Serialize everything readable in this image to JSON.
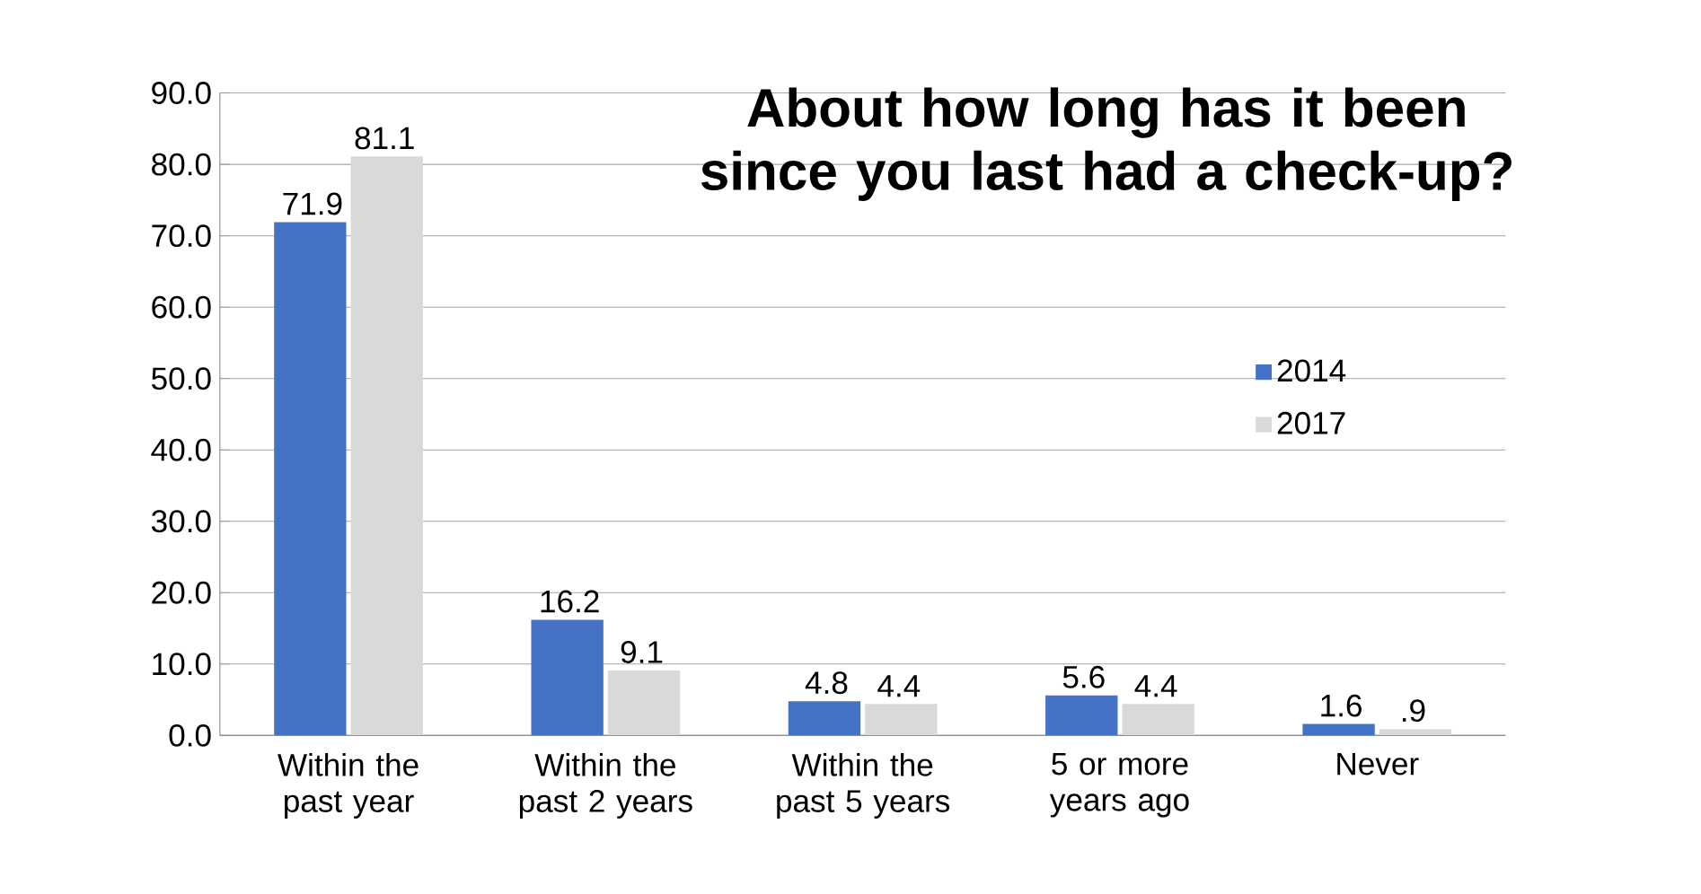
{
  "chart_data": {
    "type": "bar",
    "title": "About how long has it been since you last had a check-up?",
    "categories": [
      "Within the past year",
      "Within the past 2 years",
      "Within the past 5 years",
      "5 or more years ago",
      "Never"
    ],
    "series": [
      {
        "name": "2014",
        "color": "#4472c4",
        "values": [
          71.9,
          16.2,
          4.8,
          5.6,
          1.6
        ],
        "value_labels": [
          "71.9",
          "16.2",
          "4.8",
          "5.6",
          "1.6"
        ]
      },
      {
        "name": "2017",
        "color": "#d9d9d9",
        "values": [
          81.1,
          9.1,
          4.4,
          4.4,
          0.9
        ],
        "value_labels": [
          "81.1",
          "9.1",
          "4.4",
          "4.4",
          ".9"
        ]
      }
    ],
    "ylim": [
      0,
      90
    ],
    "yticks": [
      {
        "value": 0,
        "label": "0.0"
      },
      {
        "value": 10,
        "label": "10.0"
      },
      {
        "value": 20,
        "label": "20.0"
      },
      {
        "value": 30,
        "label": "30.0"
      },
      {
        "value": 40,
        "label": "40.0"
      },
      {
        "value": 50,
        "label": "50.0"
      },
      {
        "value": 60,
        "label": "60.0"
      },
      {
        "value": 70,
        "label": "70.0"
      },
      {
        "value": 80,
        "label": "80.0"
      },
      {
        "value": 90,
        "label": "90.0"
      }
    ],
    "grid": "y",
    "legend": "right"
  }
}
